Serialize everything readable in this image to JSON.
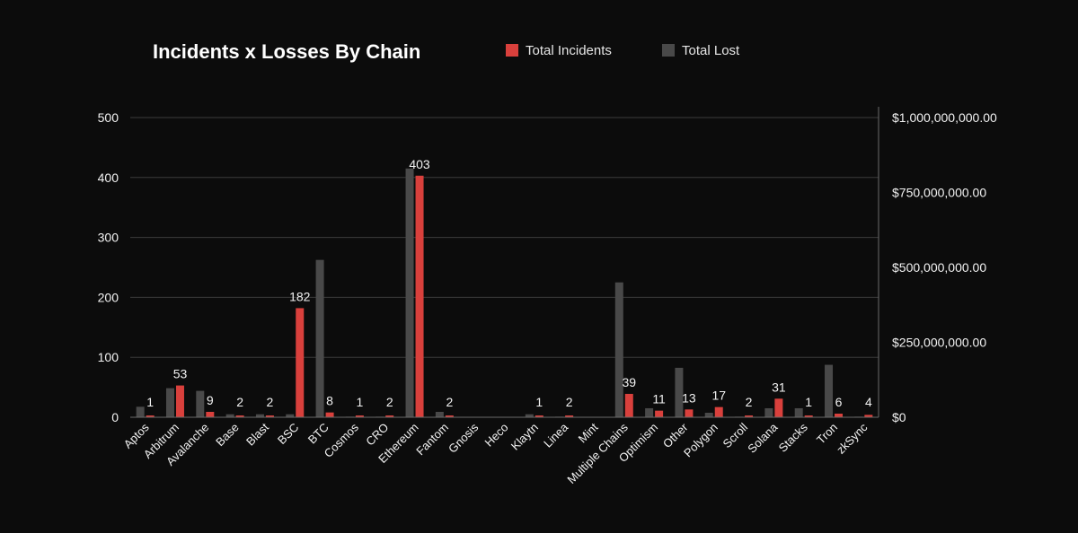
{
  "colors": {
    "background": "#0c0c0c",
    "incidents": "#d9403c",
    "lost": "#494949",
    "grid": "#3b3b3b",
    "text": "#f2f2f2"
  },
  "chart_data": {
    "type": "bar",
    "title": "Incidents x Losses By Chain",
    "legend": [
      "Total Incidents",
      "Total Lost"
    ],
    "legend_position": "top",
    "categories": [
      "Aptos",
      "Arbitrum",
      "Avalanche",
      "Base",
      "Blast",
      "BSC",
      "BTC",
      "Cosmos",
      "CRO",
      "Ethereum",
      "Fantom",
      "Gnosis",
      "Heco",
      "Klaytn",
      "Linea",
      "Mint",
      "Multiple Chains",
      "Optimism",
      "Other",
      "Polygon",
      "Scroll",
      "Solana",
      "Stacks",
      "Tron",
      "zkSync"
    ],
    "series": [
      {
        "name": "Total Lost",
        "axis": "right",
        "values": [
          35000000,
          97000000,
          88000000,
          10000000,
          10000000,
          10000000,
          525000000,
          2000000,
          2000000,
          830000000,
          18000000,
          0,
          0,
          10000000,
          2000000,
          0,
          450000000,
          30000000,
          165000000,
          15000000,
          2000000,
          30000000,
          30000000,
          175000000,
          2000000
        ]
      },
      {
        "name": "Total Incidents",
        "axis": "left",
        "values": [
          1,
          53,
          9,
          2,
          2,
          182,
          8,
          1,
          2,
          403,
          2,
          0,
          0,
          1,
          2,
          0,
          39,
          11,
          13,
          17,
          2,
          31,
          1,
          6,
          4
        ],
        "labels": [
          "1",
          "53",
          "9",
          "2",
          "2",
          "182",
          "8",
          "1",
          "2",
          "403",
          "2",
          "",
          "",
          "1",
          "2",
          "",
          "39",
          "11",
          "13",
          "17",
          "2",
          "31",
          "1",
          "6",
          "4"
        ]
      }
    ],
    "y_left": {
      "min": 0,
      "max": 500,
      "ticks": [
        "0",
        "100",
        "200",
        "300",
        "400",
        "500"
      ]
    },
    "y_right": {
      "min": 0,
      "max": 1000000000,
      "ticks": [
        "$0",
        "$250,000,000.00",
        "$500,000,000.00",
        "$750,000,000.00",
        "$1,000,000,000.00"
      ]
    },
    "grid": true
  }
}
